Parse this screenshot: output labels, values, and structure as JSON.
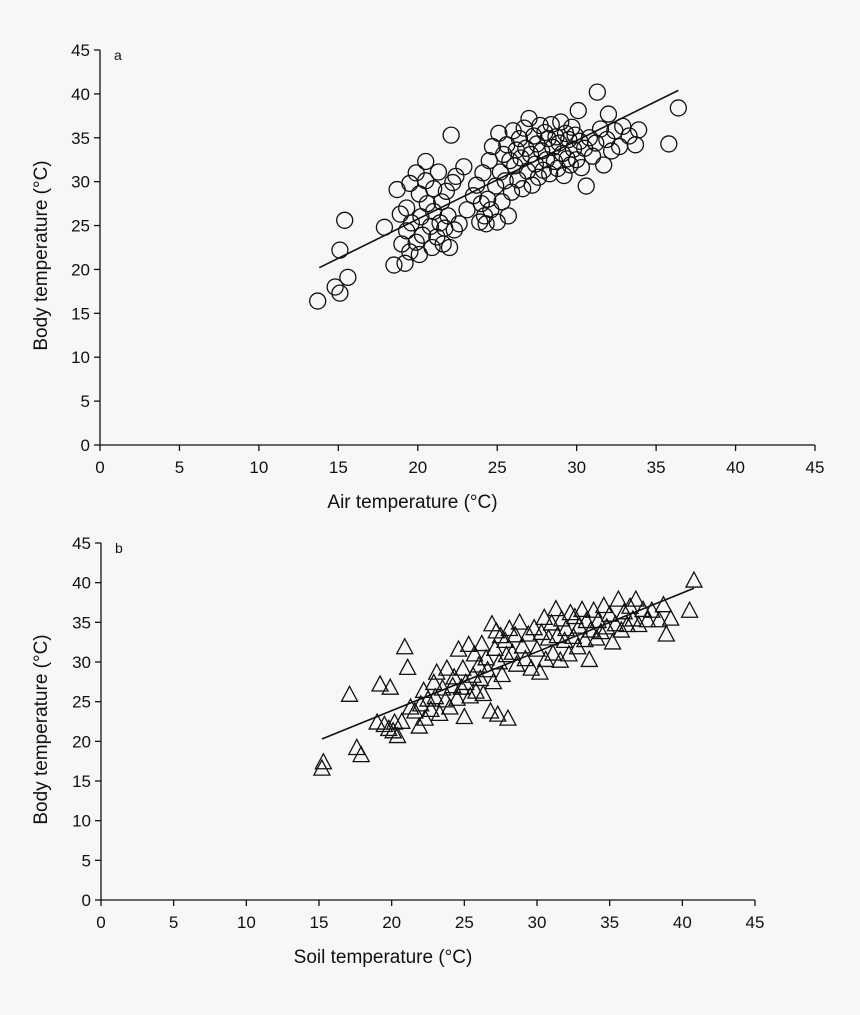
{
  "chart_data": [
    {
      "type": "scatter",
      "panel_label": "a",
      "marker": "circle",
      "title": "",
      "xlabel": "Air temperature (°C)",
      "ylabel": "Body temperature (°C)",
      "xlim": [
        0,
        45
      ],
      "ylim": [
        0,
        45
      ],
      "xticks": [
        0,
        5,
        10,
        15,
        20,
        25,
        30,
        35,
        40,
        45
      ],
      "yticks": [
        0,
        5,
        10,
        15,
        20,
        25,
        30,
        35,
        40,
        45
      ],
      "trendline": {
        "x": [
          13.8,
          36.4
        ],
        "y": [
          20.2,
          40.4
        ]
      },
      "points": [
        [
          13.7,
          16.4
        ],
        [
          14.8,
          18.0
        ],
        [
          15.1,
          17.3
        ],
        [
          15.1,
          22.2
        ],
        [
          15.4,
          25.6
        ],
        [
          15.6,
          19.1
        ],
        [
          17.9,
          24.8
        ],
        [
          18.5,
          20.5
        ],
        [
          18.7,
          29.1
        ],
        [
          18.9,
          26.3
        ],
        [
          19.0,
          22.9
        ],
        [
          19.2,
          20.7
        ],
        [
          19.3,
          24.4
        ],
        [
          19.3,
          27.0
        ],
        [
          19.5,
          22.0
        ],
        [
          19.5,
          29.8
        ],
        [
          19.6,
          25.3
        ],
        [
          19.9,
          23.1
        ],
        [
          19.9,
          31.0
        ],
        [
          20.1,
          21.7
        ],
        [
          20.1,
          28.6
        ],
        [
          20.2,
          26.0
        ],
        [
          20.3,
          23.9
        ],
        [
          20.5,
          30.1
        ],
        [
          20.5,
          32.3
        ],
        [
          20.6,
          27.5
        ],
        [
          20.8,
          24.9
        ],
        [
          20.9,
          22.5
        ],
        [
          21.0,
          26.6
        ],
        [
          21.0,
          29.2
        ],
        [
          21.2,
          23.7
        ],
        [
          21.3,
          31.1
        ],
        [
          21.4,
          25.3
        ],
        [
          21.5,
          27.7
        ],
        [
          21.6,
          22.9
        ],
        [
          21.7,
          24.7
        ],
        [
          21.8,
          28.9
        ],
        [
          21.9,
          26.1
        ],
        [
          22.0,
          22.5
        ],
        [
          22.1,
          35.3
        ],
        [
          22.2,
          29.9
        ],
        [
          22.3,
          24.5
        ],
        [
          22.4,
          30.6
        ],
        [
          22.6,
          25.2
        ],
        [
          22.9,
          31.7
        ],
        [
          23.1,
          26.8
        ],
        [
          23.5,
          28.4
        ],
        [
          23.7,
          29.6
        ],
        [
          23.9,
          25.4
        ],
        [
          24.0,
          27.5
        ],
        [
          24.1,
          31.0
        ],
        [
          24.2,
          26.1
        ],
        [
          24.3,
          25.2
        ],
        [
          24.4,
          28.0
        ],
        [
          24.5,
          32.4
        ],
        [
          24.6,
          26.8
        ],
        [
          24.7,
          34.0
        ],
        [
          24.9,
          29.5
        ],
        [
          25.0,
          25.4
        ],
        [
          25.1,
          35.5
        ],
        [
          25.2,
          31.1
        ],
        [
          25.3,
          27.7
        ],
        [
          25.4,
          33.1
        ],
        [
          25.5,
          30.1
        ],
        [
          25.6,
          34.2
        ],
        [
          25.7,
          26.1
        ],
        [
          25.8,
          32.4
        ],
        [
          25.9,
          28.8
        ],
        [
          26.0,
          35.8
        ],
        [
          26.1,
          31.8
        ],
        [
          26.2,
          33.6
        ],
        [
          26.3,
          30.2
        ],
        [
          26.4,
          34.9
        ],
        [
          26.5,
          32.7
        ],
        [
          26.6,
          29.2
        ],
        [
          26.7,
          36.1
        ],
        [
          26.8,
          33.8
        ],
        [
          26.9,
          31.2
        ],
        [
          27.0,
          37.2
        ],
        [
          27.1,
          33.1
        ],
        [
          27.2,
          29.6
        ],
        [
          27.3,
          35.2
        ],
        [
          27.4,
          32.0
        ],
        [
          27.5,
          34.3
        ],
        [
          27.6,
          30.5
        ],
        [
          27.7,
          36.4
        ],
        [
          27.8,
          33.5
        ],
        [
          27.9,
          31.3
        ],
        [
          28.0,
          35.6
        ],
        [
          28.1,
          32.5
        ],
        [
          28.2,
          34.9
        ],
        [
          28.3,
          30.9
        ],
        [
          28.4,
          36.5
        ],
        [
          28.5,
          33.9
        ],
        [
          28.6,
          32.3
        ],
        [
          28.7,
          35.1
        ],
        [
          28.8,
          31.5
        ],
        [
          28.9,
          34.4
        ],
        [
          29.0,
          36.8
        ],
        [
          29.1,
          33.2
        ],
        [
          29.2,
          30.7
        ],
        [
          29.3,
          35.5
        ],
        [
          29.4,
          32.6
        ],
        [
          29.5,
          34.8
        ],
        [
          29.6,
          31.9
        ],
        [
          29.7,
          36.2
        ],
        [
          29.8,
          33.7
        ],
        [
          29.9,
          35.3
        ],
        [
          30.0,
          32.5
        ],
        [
          30.1,
          38.1
        ],
        [
          30.2,
          34.6
        ],
        [
          30.3,
          31.6
        ],
        [
          30.5,
          33.8
        ],
        [
          30.6,
          29.5
        ],
        [
          30.8,
          35.0
        ],
        [
          31.0,
          32.9
        ],
        [
          31.2,
          34.4
        ],
        [
          31.3,
          40.2
        ],
        [
          31.5,
          36.0
        ],
        [
          31.7,
          31.9
        ],
        [
          31.9,
          34.8
        ],
        [
          32.0,
          37.7
        ],
        [
          32.2,
          33.5
        ],
        [
          32.4,
          35.8
        ],
        [
          32.7,
          34.0
        ],
        [
          32.9,
          36.3
        ],
        [
          33.3,
          35.2
        ],
        [
          33.7,
          34.2
        ],
        [
          33.9,
          35.9
        ],
        [
          35.8,
          34.3
        ],
        [
          36.4,
          38.4
        ]
      ]
    },
    {
      "type": "scatter",
      "panel_label": "b",
      "marker": "triangle",
      "title": "",
      "xlabel": "Soil temperature (°C)",
      "ylabel": "Body temperature (°C)",
      "xlim": [
        0,
        45
      ],
      "ylim": [
        0,
        45
      ],
      "xticks": [
        0,
        5,
        10,
        15,
        20,
        25,
        30,
        35,
        40,
        45
      ],
      "yticks": [
        0,
        5,
        10,
        15,
        20,
        25,
        30,
        35,
        40,
        45
      ],
      "trendline": {
        "x": [
          15.2,
          40.8
        ],
        "y": [
          20.3,
          39.3
        ]
      },
      "points": [
        [
          15.2,
          16.5
        ],
        [
          15.3,
          17.3
        ],
        [
          17.1,
          25.8
        ],
        [
          17.6,
          19.1
        ],
        [
          17.9,
          18.2
        ],
        [
          19.0,
          22.3
        ],
        [
          19.2,
          27.1
        ],
        [
          19.5,
          22.0
        ],
        [
          19.8,
          21.5
        ],
        [
          19.9,
          26.7
        ],
        [
          20.1,
          21.2
        ],
        [
          20.2,
          22.3
        ],
        [
          20.4,
          20.6
        ],
        [
          20.7,
          22.4
        ],
        [
          20.9,
          31.8
        ],
        [
          21.1,
          29.2
        ],
        [
          21.3,
          24.2
        ],
        [
          21.6,
          23.7
        ],
        [
          21.9,
          21.8
        ],
        [
          22.0,
          24.6
        ],
        [
          22.2,
          26.3
        ],
        [
          22.3,
          22.8
        ],
        [
          22.5,
          25.2
        ],
        [
          22.7,
          23.9
        ],
        [
          22.9,
          27.3
        ],
        [
          23.0,
          25.5
        ],
        [
          23.1,
          28.6
        ],
        [
          23.3,
          23.4
        ],
        [
          23.5,
          26.6
        ],
        [
          23.7,
          25.1
        ],
        [
          23.8,
          29.1
        ],
        [
          24.0,
          24.2
        ],
        [
          24.2,
          26.9
        ],
        [
          24.3,
          28.0
        ],
        [
          24.5,
          25.3
        ],
        [
          24.6,
          31.5
        ],
        [
          24.8,
          26.7
        ],
        [
          24.9,
          29.1
        ],
        [
          25.0,
          23.0
        ],
        [
          25.1,
          27.3
        ],
        [
          25.3,
          32.1
        ],
        [
          25.4,
          25.6
        ],
        [
          25.6,
          28.2
        ],
        [
          25.7,
          30.9
        ],
        [
          25.8,
          26.2
        ],
        [
          26.0,
          29.5
        ],
        [
          26.1,
          27.8
        ],
        [
          26.2,
          32.2
        ],
        [
          26.3,
          25.9
        ],
        [
          26.5,
          30.4
        ],
        [
          26.6,
          28.9
        ],
        [
          26.8,
          23.7
        ],
        [
          26.9,
          34.7
        ],
        [
          27.0,
          27.4
        ],
        [
          27.1,
          31.6
        ],
        [
          27.2,
          33.8
        ],
        [
          27.3,
          23.3
        ],
        [
          27.4,
          29.9
        ],
        [
          27.5,
          33.2
        ],
        [
          27.6,
          28.3
        ],
        [
          27.8,
          32.6
        ],
        [
          27.9,
          30.8
        ],
        [
          28.0,
          22.8
        ],
        [
          28.1,
          34.1
        ],
        [
          28.3,
          31.1
        ],
        [
          28.5,
          33.3
        ],
        [
          28.6,
          29.6
        ],
        [
          28.8,
          34.9
        ],
        [
          29.0,
          31.9
        ],
        [
          29.2,
          30.3
        ],
        [
          29.4,
          33.4
        ],
        [
          29.6,
          29.1
        ],
        [
          29.8,
          34.2
        ],
        [
          30.0,
          31.5
        ],
        [
          30.2,
          28.6
        ],
        [
          30.3,
          33.6
        ],
        [
          30.5,
          35.5
        ],
        [
          30.6,
          30.2
        ],
        [
          30.8,
          32.9
        ],
        [
          31.0,
          34.8
        ],
        [
          31.1,
          31.0
        ],
        [
          31.3,
          36.6
        ],
        [
          31.4,
          33.2
        ],
        [
          31.6,
          30.1
        ],
        [
          31.7,
          35.3
        ],
        [
          31.9,
          32.6
        ],
        [
          32.0,
          34.1
        ],
        [
          32.2,
          30.9
        ],
        [
          32.3,
          36.1
        ],
        [
          32.5,
          33.1
        ],
        [
          32.6,
          35.6
        ],
        [
          32.8,
          31.8
        ],
        [
          32.9,
          34.4
        ],
        [
          33.1,
          36.5
        ],
        [
          33.3,
          32.7
        ],
        [
          33.4,
          35.1
        ],
        [
          33.6,
          30.2
        ],
        [
          33.7,
          33.9
        ],
        [
          33.9,
          36.4
        ],
        [
          34.1,
          32.9
        ],
        [
          34.2,
          35.1
        ],
        [
          34.4,
          33.7
        ],
        [
          34.6,
          37.0
        ],
        [
          34.8,
          34.3
        ],
        [
          35.0,
          35.9
        ],
        [
          35.2,
          32.4
        ],
        [
          35.4,
          34.7
        ],
        [
          35.6,
          37.8
        ],
        [
          35.8,
          33.9
        ],
        [
          36.0,
          36.2
        ],
        [
          36.2,
          34.6
        ],
        [
          36.4,
          36.9
        ],
        [
          36.6,
          35.3
        ],
        [
          36.8,
          37.8
        ],
        [
          37.0,
          34.6
        ],
        [
          37.3,
          36.5
        ],
        [
          37.6,
          35.2
        ],
        [
          37.9,
          36.4
        ],
        [
          38.4,
          35.2
        ],
        [
          38.7,
          37.1
        ],
        [
          38.9,
          33.4
        ],
        [
          39.2,
          35.4
        ],
        [
          40.5,
          36.4
        ],
        [
          40.8,
          40.2
        ]
      ]
    }
  ]
}
